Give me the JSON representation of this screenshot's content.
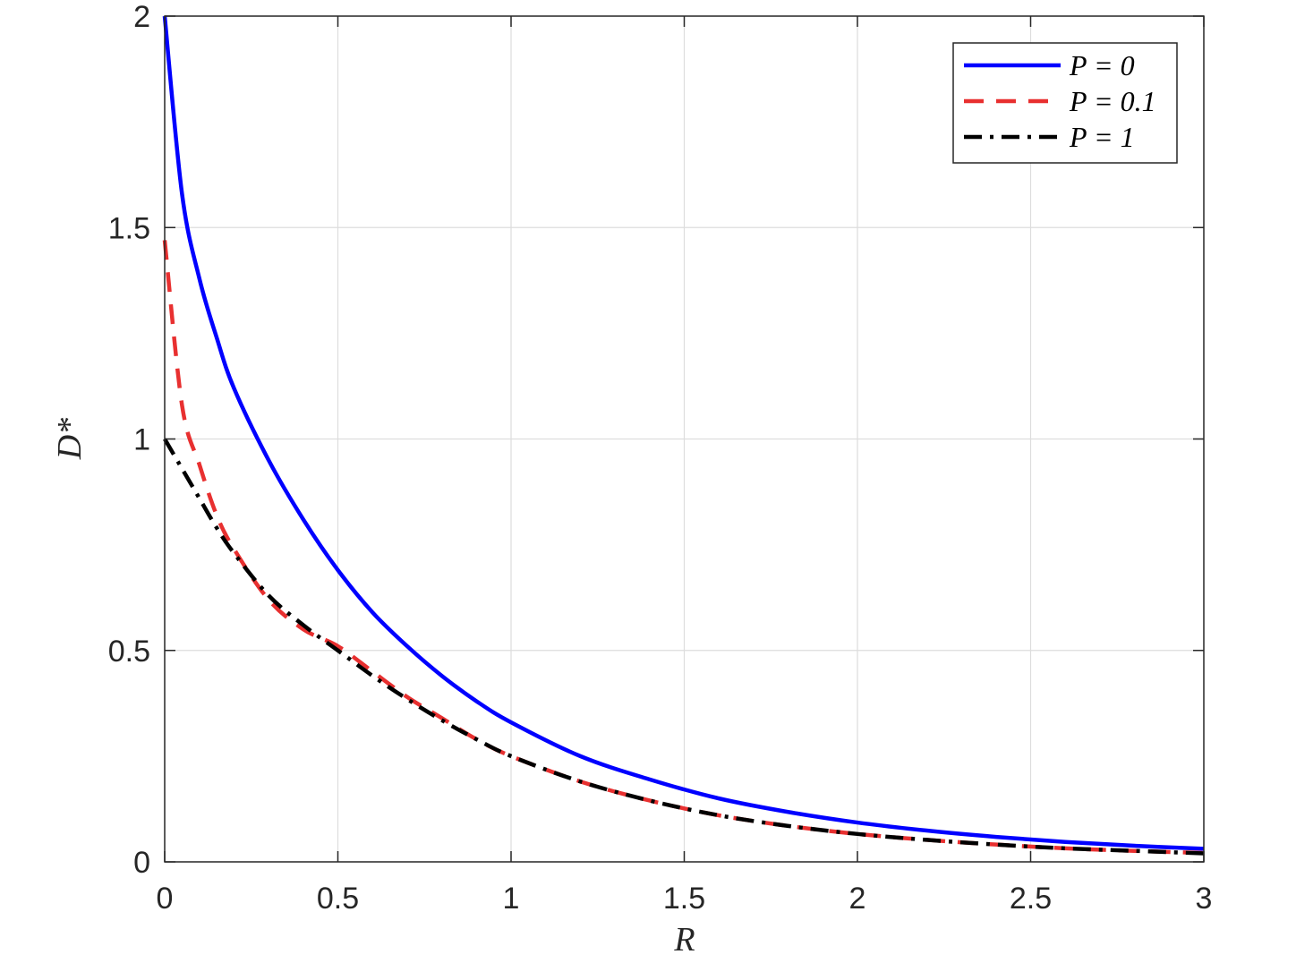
{
  "chart_data": {
    "type": "line",
    "xlabel": "R",
    "ylabel": "D*",
    "xlim": [
      0,
      3
    ],
    "ylim": [
      0,
      2
    ],
    "xticks": [
      "0",
      "0.5",
      "1",
      "1.5",
      "2",
      "2.5",
      "3"
    ],
    "yticks": [
      "0",
      "0.5",
      "1",
      "1.5",
      "2"
    ],
    "grid": true,
    "legend_position": "top-right",
    "x": [
      0,
      0.05,
      0.1,
      0.15,
      0.2,
      0.3,
      0.4,
      0.5,
      0.6,
      0.7,
      0.8,
      0.9,
      1.0,
      1.2,
      1.4,
      1.6,
      1.8,
      2.0,
      2.2,
      2.4,
      2.6,
      2.8,
      3.0
    ],
    "series": [
      {
        "name": "P = 0",
        "color": "#0000ff",
        "dash": "solid",
        "values": [
          2.0,
          1.58,
          1.38,
          1.24,
          1.12,
          0.95,
          0.81,
          0.69,
          0.59,
          0.51,
          0.44,
          0.38,
          0.33,
          0.25,
          0.195,
          0.15,
          0.118,
          0.093,
          0.074,
          0.059,
          0.047,
          0.038,
          0.031
        ]
      },
      {
        "name": "P = 0.1",
        "color": "#e83030",
        "dash": "dashed",
        "values": [
          1.47,
          1.08,
          0.94,
          0.82,
          0.74,
          0.62,
          0.55,
          0.51,
          0.45,
          0.39,
          0.34,
          0.29,
          0.25,
          0.19,
          0.145,
          0.11,
          0.085,
          0.066,
          0.052,
          0.041,
          0.032,
          0.026,
          0.021
        ]
      },
      {
        "name": "P = 1",
        "color": "#000000",
        "dash": "dashdot",
        "values": [
          1.0,
          0.93,
          0.86,
          0.79,
          0.73,
          0.63,
          0.56,
          0.5,
          0.44,
          0.385,
          0.335,
          0.29,
          0.25,
          0.19,
          0.145,
          0.11,
          0.085,
          0.066,
          0.052,
          0.041,
          0.032,
          0.026,
          0.02
        ]
      }
    ],
    "legend": [
      "P = 0",
      "P = 0.1",
      "P = 1"
    ]
  }
}
